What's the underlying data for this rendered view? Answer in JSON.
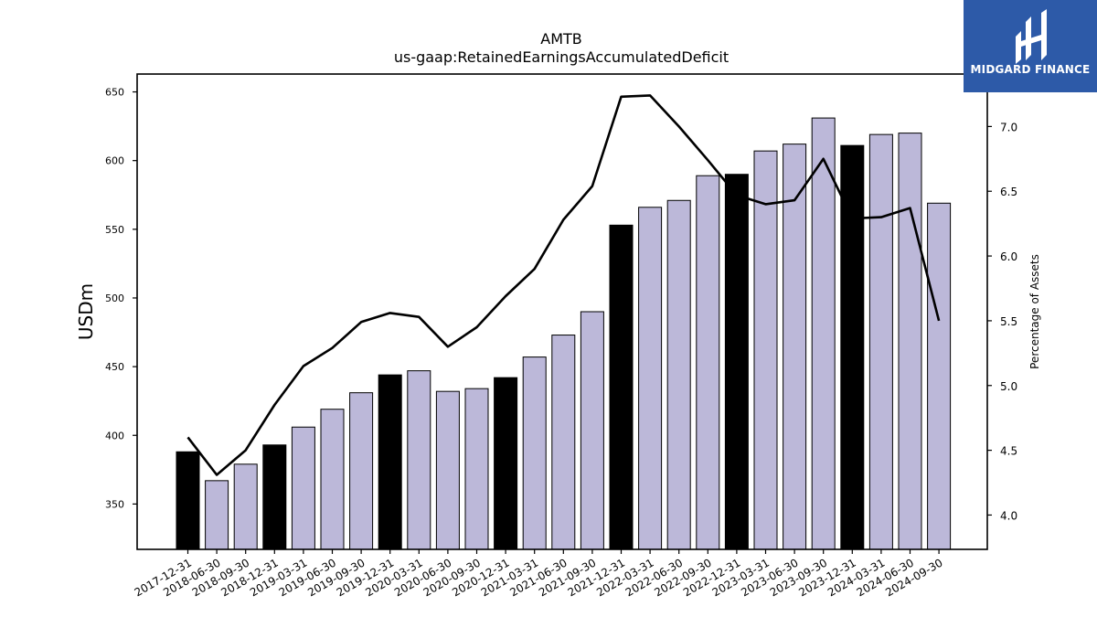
{
  "chart_data": {
    "type": "bar",
    "title": "AMTB",
    "subtitle": "us-gaap:RetainedEarningsAccumulatedDeficit",
    "ylabel": "USDm",
    "y2label": "Percentage of Assets",
    "ylim": [
      317,
      663
    ],
    "y2lim": [
      3.735,
      7.405
    ],
    "yticks": [
      350,
      400,
      450,
      500,
      550,
      600,
      650
    ],
    "y2ticks": [
      "4.0",
      "4.5",
      "5.0",
      "5.5",
      "6.0",
      "6.5",
      "7.0"
    ],
    "categories": [
      "2017-12-31",
      "2018-06-30",
      "2018-09-30",
      "2018-12-31",
      "2019-03-31",
      "2019-06-30",
      "2019-09-30",
      "2019-12-31",
      "2020-03-31",
      "2020-06-30",
      "2020-09-30",
      "2020-12-31",
      "2021-03-31",
      "2021-06-30",
      "2021-09-30",
      "2021-12-31",
      "2022-03-31",
      "2022-06-30",
      "2022-09-30",
      "2022-12-31",
      "2023-03-31",
      "2023-06-30",
      "2023-09-30",
      "2023-12-31",
      "2024-03-31",
      "2024-06-30",
      "2024-09-30"
    ],
    "series": [
      {
        "type": "bar",
        "values": [
          388,
          367,
          379,
          393,
          406,
          419,
          431,
          444,
          447,
          432,
          434,
          442,
          457,
          473,
          490,
          553,
          566,
          571,
          589,
          590,
          607,
          612,
          631,
          611,
          619,
          620,
          569
        ],
        "colors": [
          "#000000",
          "#bcb8d9",
          "#bcb8d9",
          "#000000",
          "#bcb8d9",
          "#bcb8d9",
          "#bcb8d9",
          "#000000",
          "#bcb8d9",
          "#bcb8d9",
          "#bcb8d9",
          "#000000",
          "#bcb8d9",
          "#bcb8d9",
          "#bcb8d9",
          "#000000",
          "#bcb8d9",
          "#bcb8d9",
          "#bcb8d9",
          "#000000",
          "#bcb8d9",
          "#bcb8d9",
          "#bcb8d9",
          "#000000",
          "#bcb8d9",
          "#bcb8d9",
          "#bcb8d9"
        ]
      },
      {
        "type": "line",
        "axis": "right",
        "values": [
          4.6,
          4.31,
          4.5,
          4.85,
          5.15,
          5.29,
          5.49,
          5.56,
          5.53,
          5.3,
          5.45,
          5.69,
          5.9,
          6.28,
          6.54,
          7.23,
          7.24,
          7.0,
          6.74,
          6.47,
          6.4,
          6.43,
          6.75,
          6.29,
          6.3,
          6.37,
          5.5
        ],
        "color": "#000000"
      }
    ],
    "grid": false,
    "legend": "none"
  },
  "logo": {
    "text": "MIDGARD FINANCE",
    "background": "#2d5aa8"
  }
}
